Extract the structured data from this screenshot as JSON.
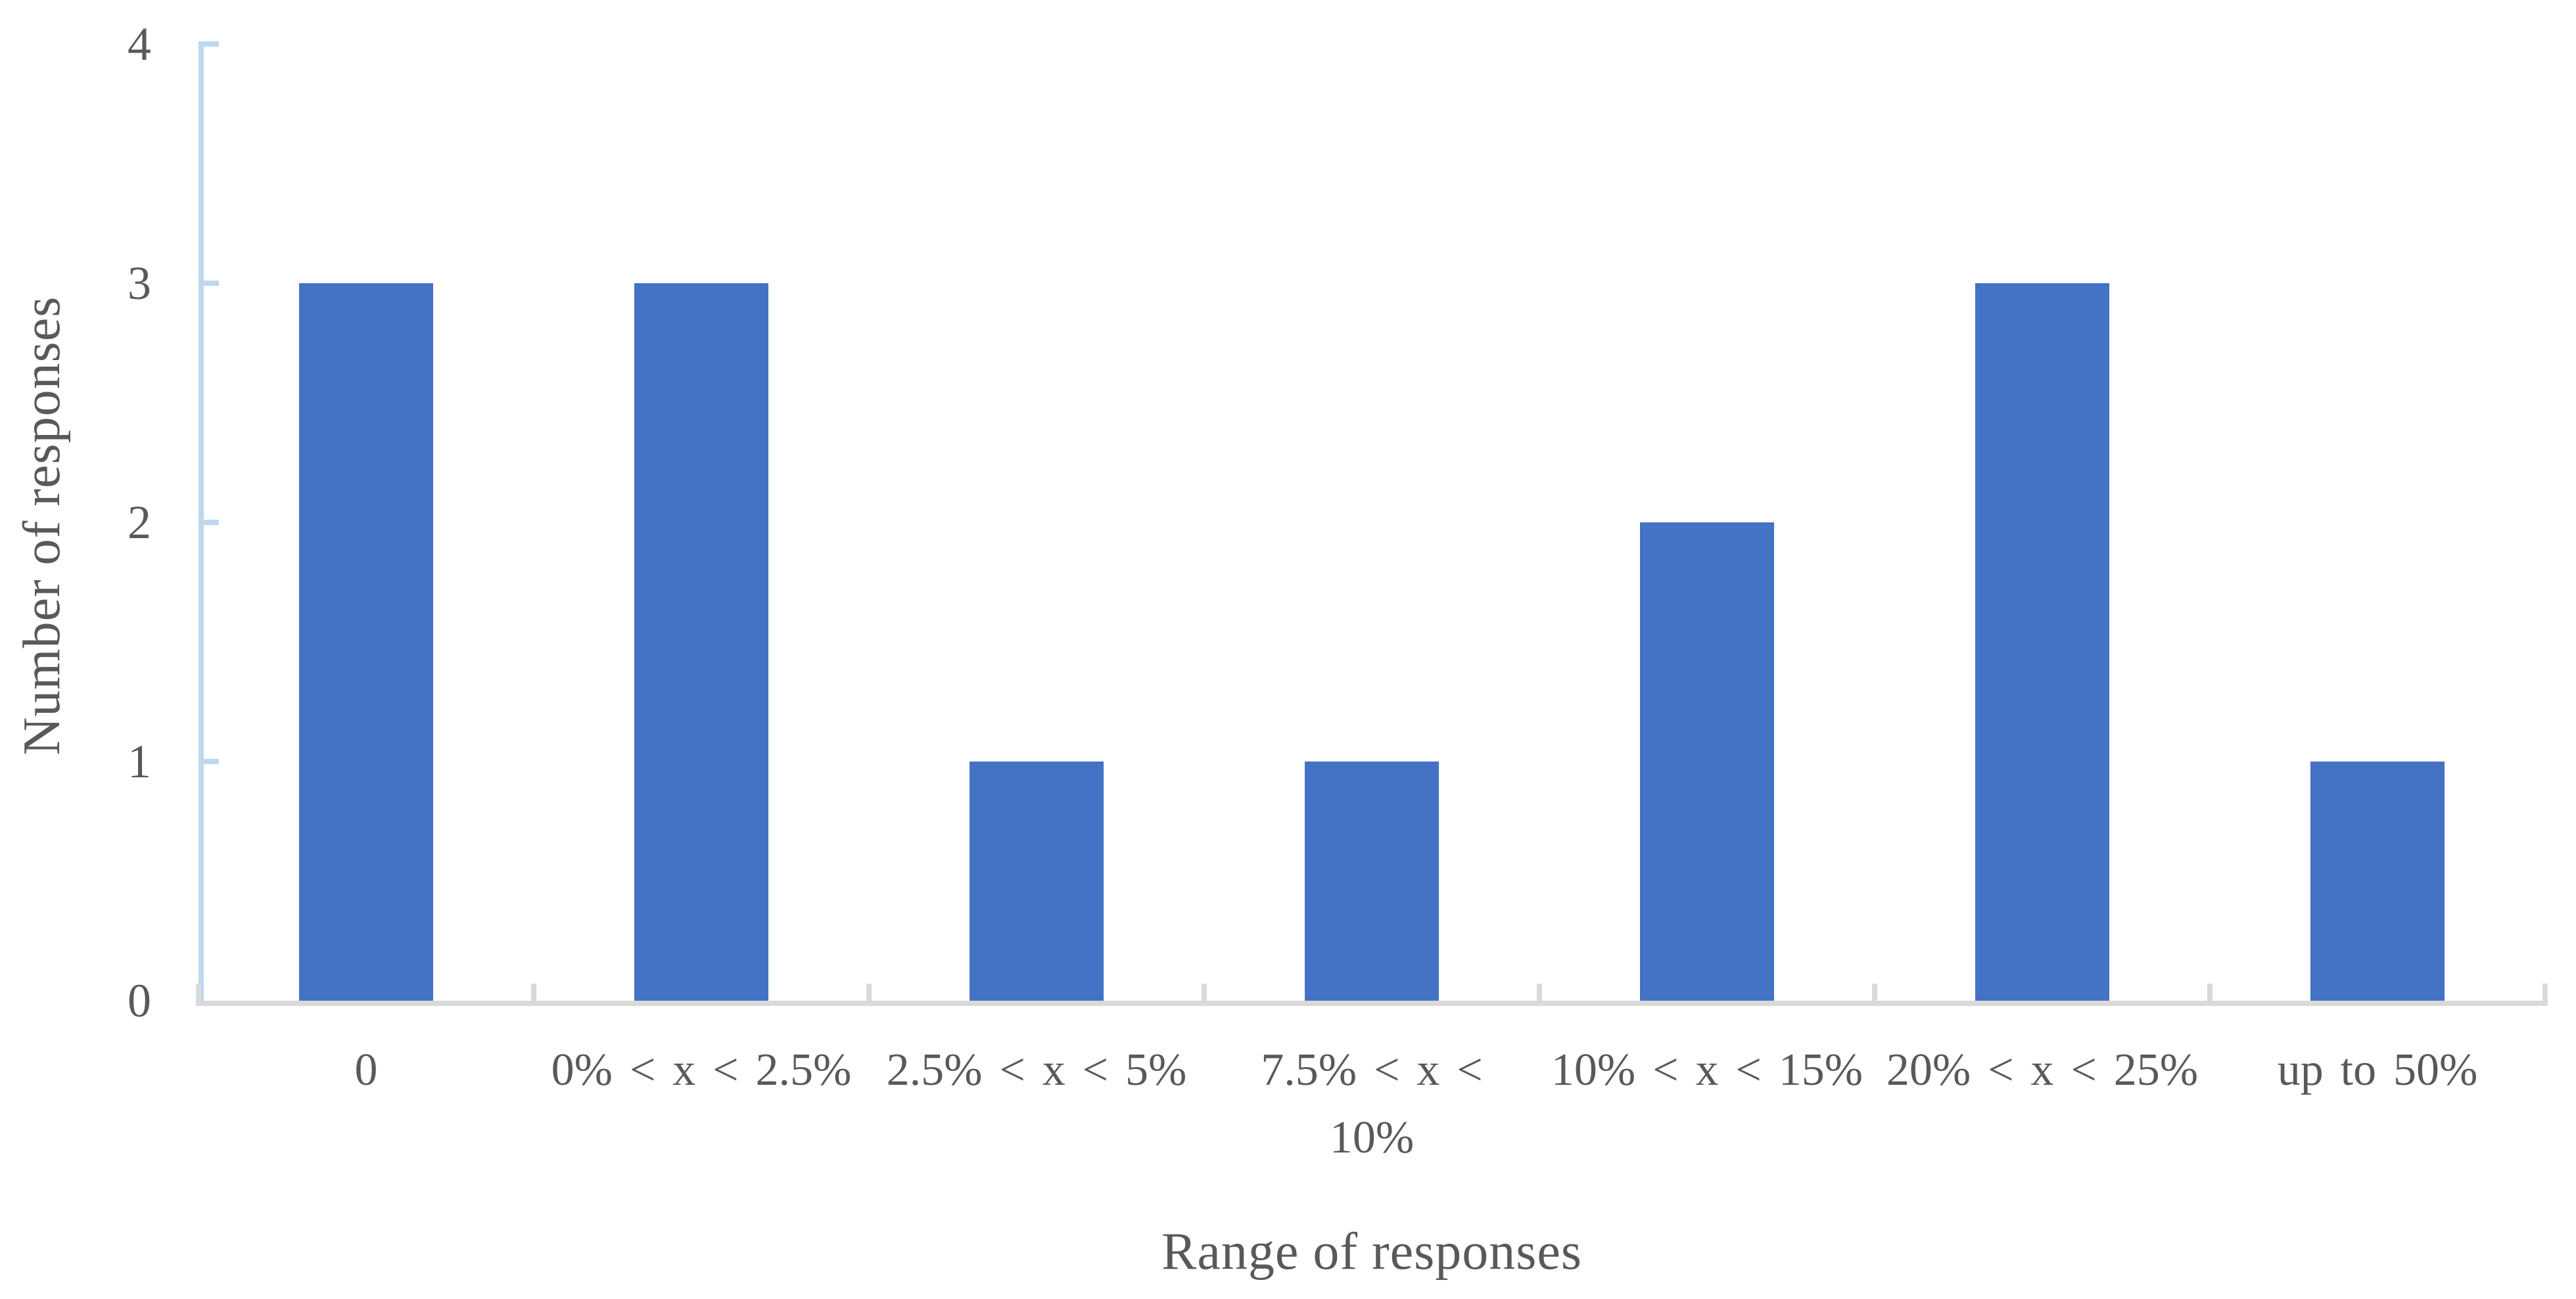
{
  "chart_data": {
    "type": "bar",
    "title": "",
    "xlabel": "Range of responses",
    "ylabel": "Number of responses",
    "categories": [
      "0",
      "0% < x < 2.5%",
      "2.5% < x < 5%",
      "7.5% < x < 10%",
      "10% < x < 15%",
      "20% < x < 25%",
      "up to 50%"
    ],
    "category_label_lines": [
      [
        "0"
      ],
      [
        "0% < x < 2.5%"
      ],
      [
        "2.5% < x < 5%"
      ],
      [
        "7.5% < x <",
        "10%"
      ],
      [
        "10% < x < 15%"
      ],
      [
        "20% < x < 25%"
      ],
      [
        "up to 50%"
      ]
    ],
    "values": [
      3,
      3,
      1,
      1,
      2,
      3,
      1
    ],
    "ylim": [
      0,
      4
    ],
    "yticks": [
      0,
      1,
      2,
      3,
      4
    ],
    "grid": false,
    "legend": null,
    "colors": {
      "bar": "#4472C4",
      "y_axis": "#BDD7EE",
      "y_tick": "#BDD7EE",
      "x_axis": "#D9D9D9",
      "x_tick": "#D9D9D9",
      "text": "#595959",
      "background": "#FFFFFF"
    }
  }
}
